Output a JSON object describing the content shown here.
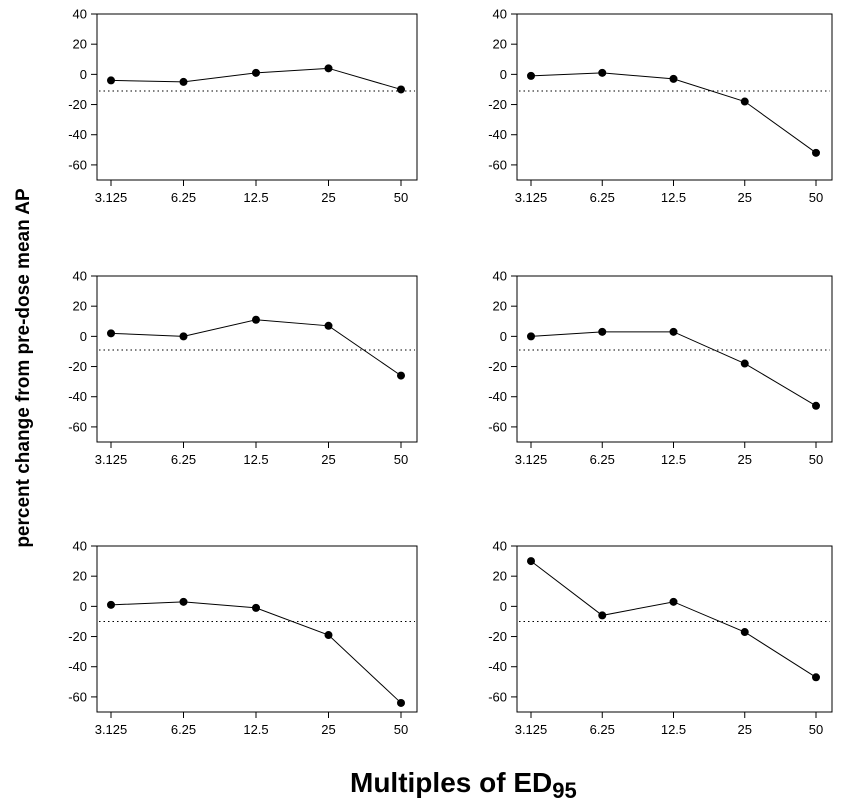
{
  "figure": {
    "ylabel": "percent change from pre-dose mean AP",
    "xlabel_main": "Multiples of ED",
    "xlabel_sub": "95"
  },
  "chart_data": [
    {
      "type": "line",
      "panel": "top-left",
      "categories": [
        "3.125",
        "6.25",
        "12.5",
        "25",
        "50"
      ],
      "values": [
        -4,
        -5,
        1,
        4,
        -10
      ],
      "reference_line": -11,
      "ylim": [
        -70,
        40
      ],
      "yticks": [
        "40",
        "20",
        "0",
        "-20",
        "-40",
        "-60"
      ],
      "grid": false
    },
    {
      "type": "line",
      "panel": "top-right",
      "categories": [
        "3.125",
        "6.25",
        "12.5",
        "25",
        "50"
      ],
      "values": [
        -1,
        1,
        -3,
        -18,
        -52
      ],
      "reference_line": -11,
      "ylim": [
        -70,
        40
      ],
      "yticks": [
        "40",
        "20",
        "0",
        "-20",
        "-40",
        "-60"
      ],
      "grid": false
    },
    {
      "type": "line",
      "panel": "middle-left",
      "categories": [
        "3.125",
        "6.25",
        "12.5",
        "25",
        "50"
      ],
      "values": [
        2,
        0,
        11,
        7,
        -26
      ],
      "reference_line": -9,
      "ylim": [
        -70,
        40
      ],
      "yticks": [
        "40",
        "20",
        "0",
        "-20",
        "-40",
        "-60"
      ],
      "grid": false
    },
    {
      "type": "line",
      "panel": "middle-right",
      "categories": [
        "3.125",
        "6.25",
        "12.5",
        "25",
        "50"
      ],
      "values": [
        0,
        3,
        3,
        -18,
        -46
      ],
      "reference_line": -9,
      "ylim": [
        -70,
        40
      ],
      "yticks": [
        "40",
        "20",
        "0",
        "-20",
        "-40",
        "-60"
      ],
      "grid": false
    },
    {
      "type": "line",
      "panel": "bottom-left",
      "categories": [
        "3.125",
        "6.25",
        "12.5",
        "25",
        "50"
      ],
      "values": [
        1,
        3,
        -1,
        -19,
        -64
      ],
      "reference_line": -10,
      "ylim": [
        -70,
        40
      ],
      "yticks": [
        "40",
        "20",
        "0",
        "-20",
        "-40",
        "-60"
      ],
      "grid": false
    },
    {
      "type": "line",
      "panel": "bottom-right",
      "categories": [
        "3.125",
        "6.25",
        "12.5",
        "25",
        "50"
      ],
      "values": [
        30,
        -6,
        3,
        -17,
        -47
      ],
      "reference_line": -10,
      "ylim": [
        -70,
        40
      ],
      "yticks": [
        "40",
        "20",
        "0",
        "-20",
        "-40",
        "-60"
      ],
      "grid": false
    }
  ]
}
